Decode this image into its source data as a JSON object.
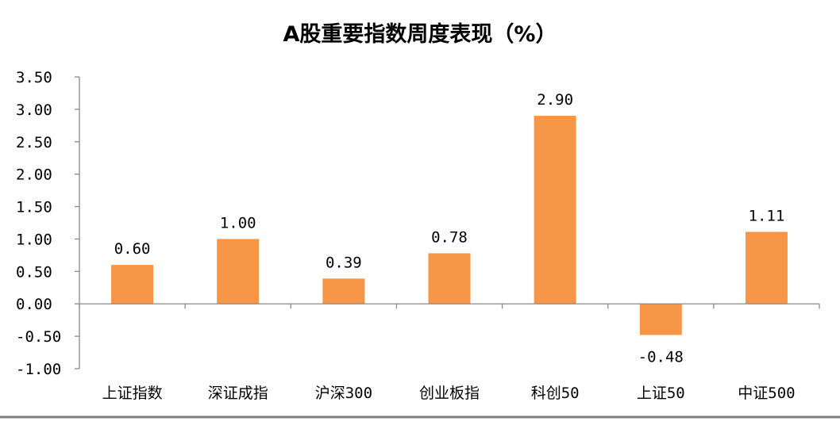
{
  "chart_data": {
    "type": "bar",
    "title": "A股重要指数周度表现（%）",
    "xlabel": "",
    "ylabel": "",
    "categories": [
      "上证指数",
      "深证成指",
      "沪深300",
      "创业板指",
      "科创50",
      "上证50",
      "中证500"
    ],
    "values": [
      0.6,
      1.0,
      0.39,
      0.78,
      2.9,
      -0.48,
      1.11
    ],
    "data_labels": [
      "0.60",
      "1.00",
      "0.39",
      "0.78",
      "2.90",
      "-0.48",
      "1.11"
    ],
    "ylim": [
      -1.0,
      3.5
    ],
    "yticks": [
      3.5,
      3.0,
      2.5,
      2.0,
      1.5,
      1.0,
      0.5,
      0.0,
      -0.5,
      -1.0
    ],
    "ytick_labels": [
      "3.50",
      "3.00",
      "2.50",
      "2.00",
      "1.50",
      "1.00",
      "0.50",
      "0.00",
      "-0.50",
      "-1.00"
    ],
    "grid": false,
    "legend": "none",
    "colors": {
      "bar": "#F79646",
      "axis": "#898989",
      "text": "#000000"
    }
  }
}
